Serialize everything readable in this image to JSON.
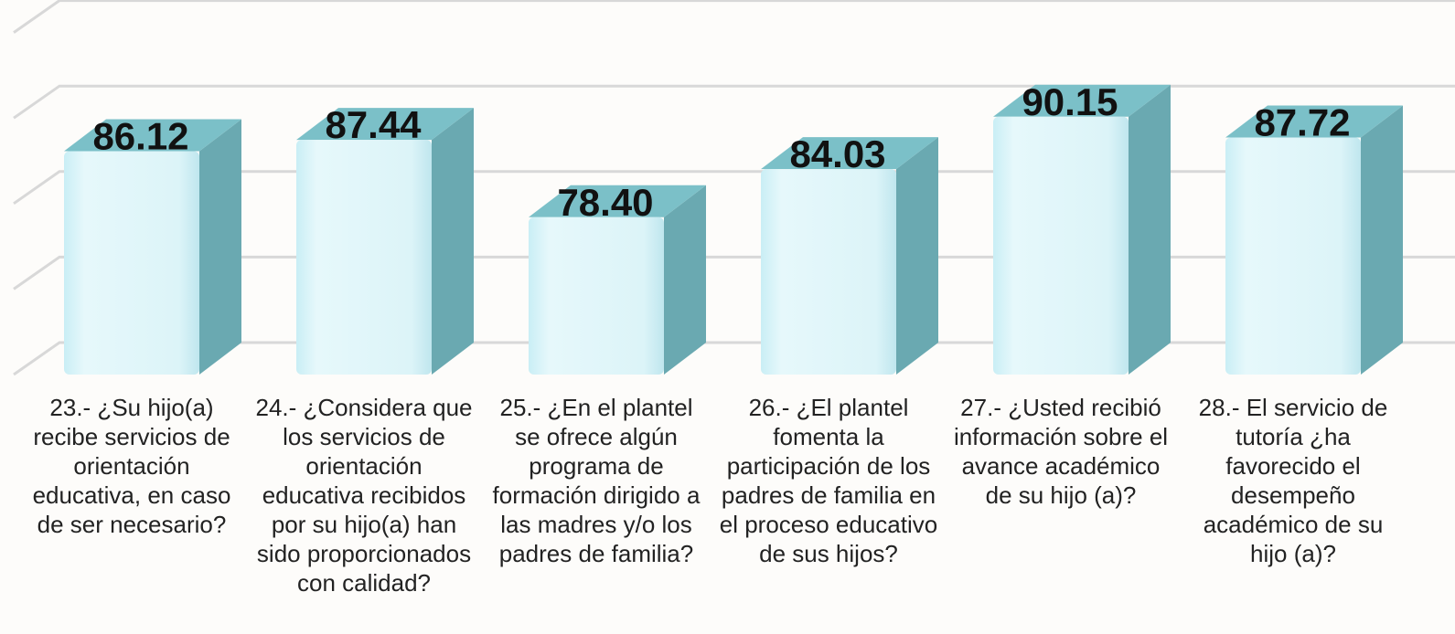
{
  "chart_data": {
    "type": "bar3d",
    "categories": [
      "23.- ¿Su hijo(a) recibe servicios de orientación educativa, en caso de ser necesario?",
      "24.- ¿Considera que los servicios de orientación educativa recibidos por su hijo(a) han sido proporcionados con calidad?",
      "25.- ¿En el plantel se ofrece algún programa de formación dirigido a las madres y/o los padres de familia?",
      "26.- ¿El plantel fomenta la participación de los padres de familia en el proceso educativo de sus hijos?",
      "27.- ¿Usted recibió información sobre el avance académico de su hijo (a)?",
      "28.- El servicio de tutoría ¿ha favorecido el desempeño académico de su hijo (a)?"
    ],
    "values": [
      86.12,
      87.44,
      78.4,
      84.03,
      90.15,
      87.72
    ],
    "value_labels": [
      "86.12",
      "87.44",
      "78.40",
      "84.03",
      "90.15",
      "87.72"
    ],
    "color": "#7bc0c8",
    "ylim": [
      60,
      100
    ],
    "yticks": [
      60,
      70,
      80,
      90,
      100
    ],
    "grid": true
  }
}
